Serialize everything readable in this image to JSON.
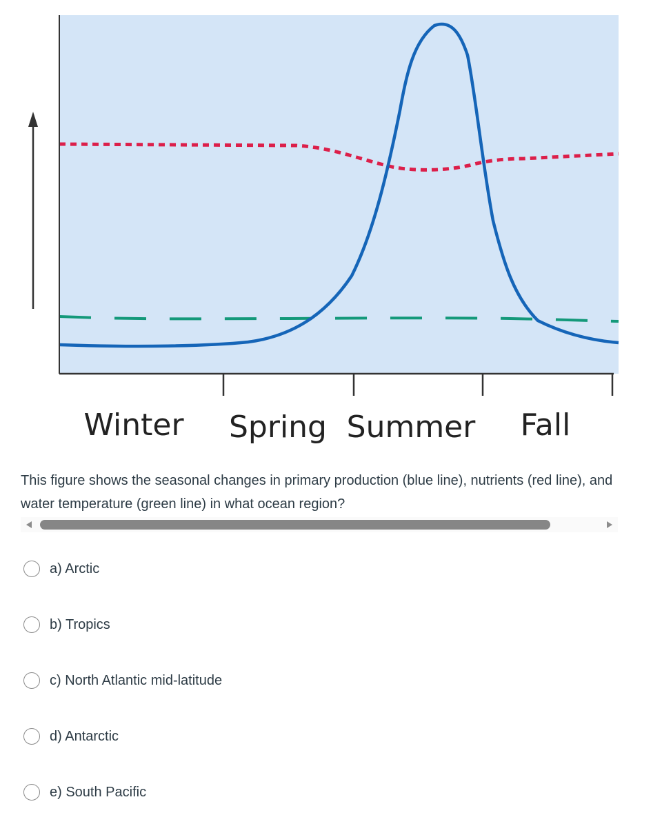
{
  "figure": {
    "seasons": [
      "Winter",
      "Spring",
      "Summer",
      "Fall"
    ],
    "colors": {
      "background": "#d4e5f7",
      "production": "#1565b8",
      "nutrients": "#dc1f4a",
      "temperature": "#14997a",
      "axis": "#333333"
    }
  },
  "question": {
    "text": "This figure shows the seasonal changes in primary production (blue line), nutrients (red line), and water temperature (green line) in what ocean region?"
  },
  "options": [
    {
      "label": "a) Arctic"
    },
    {
      "label": "b) Tropics"
    },
    {
      "label": "c) North Atlantic mid-latitude"
    },
    {
      "label": "d) Antarctic"
    },
    {
      "label": "e) South Pacific"
    }
  ]
}
